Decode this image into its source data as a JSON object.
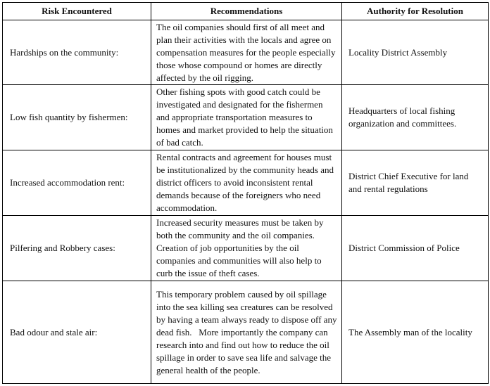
{
  "table": {
    "headers": [
      "Risk Encountered",
      "Recommendations",
      "Authority for Resolution"
    ],
    "rows": [
      {
        "risk": "Hardships on the community:",
        "recommendation": "The oil companies should first of all meet and plan their activities with the locals and agree on compensation measures for the people especially those whose compound or homes are directly affected by the oil rigging.",
        "authority": "Locality District Assembly"
      },
      {
        "risk": "Low fish quantity by fishermen:",
        "recommendation": "Other fishing spots with good catch could be investigated and designated for the fishermen and appropriate transportation measures to homes and market provided to help the situation of bad catch.",
        "authority": "Headquarters of local fishing organization and committees."
      },
      {
        "risk": "Increased accommodation rent:",
        "recommendation": "Rental contracts and agreement for houses must be institutionalized by the community heads and district officers to avoid inconsistent rental demands because of the foreigners who need accommodation.",
        "authority": "District Chief Executive for land and rental regulations"
      },
      {
        "risk": "Pilfering and Robbery cases:",
        "recommendation": "Increased security measures must be taken by both the community and the oil companies. Creation of job opportunities by the oil companies and communities will also help to curb the issue of theft cases.",
        "authority": "District Commission of Police"
      },
      {
        "risk": "Bad odour and stale air:",
        "recommendation": "This temporary problem caused by oil spillage into the sea killing sea creatures can be resolved by having a team always ready to dispose off any dead fish.   More importantly the company can research into and find out how to reduce the oil spillage in order to save sea life and salvage the general health of the people.",
        "authority": "The Assembly man of the locality"
      }
    ]
  }
}
